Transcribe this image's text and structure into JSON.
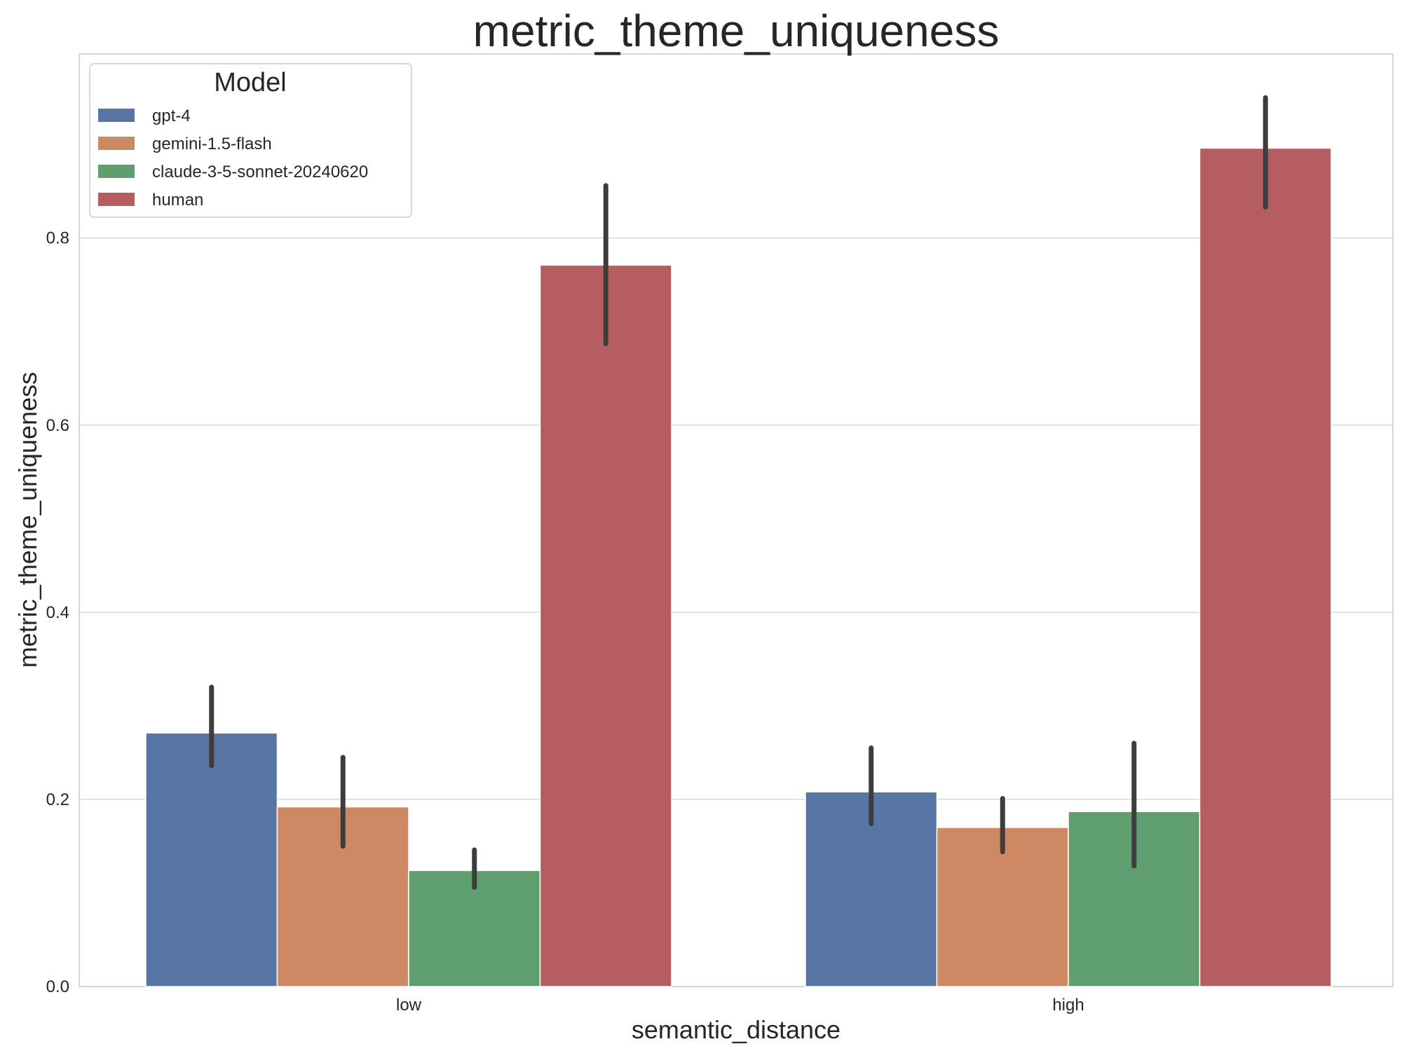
{
  "chart_data": {
    "type": "bar",
    "title": "metric_theme_uniqueness",
    "xlabel": "semantic_distance",
    "ylabel": "metric_theme_uniqueness",
    "categories": [
      "low",
      "high"
    ],
    "ylim": [
      0,
      0.9967
    ],
    "yticks": [
      0.0,
      0.2,
      0.4,
      0.6,
      0.8
    ],
    "ytick_labels": [
      "0.0",
      "0.2",
      "0.4",
      "0.6",
      "0.8"
    ],
    "grid": "horizontal",
    "legend": {
      "title": "Model",
      "position": "top-left"
    },
    "series": [
      {
        "name": "gpt-4",
        "color": "#5875a4",
        "values": [
          0.271,
          0.208
        ],
        "ci_low": [
          0.236,
          0.174
        ],
        "ci_high": [
          0.32,
          0.255
        ]
      },
      {
        "name": "gemini-1.5-flash",
        "color": "#cc8963",
        "values": [
          0.192,
          0.17
        ],
        "ci_low": [
          0.15,
          0.144
        ],
        "ci_high": [
          0.245,
          0.201
        ]
      },
      {
        "name": "claude-3-5-sonnet-20240620",
        "color": "#5f9e6e",
        "values": [
          0.124,
          0.187
        ],
        "ci_low": [
          0.106,
          0.129
        ],
        "ci_high": [
          0.146,
          0.26
        ]
      },
      {
        "name": "human",
        "color": "#b55d60",
        "values": [
          0.771,
          0.896
        ],
        "ci_low": [
          0.687,
          0.833
        ],
        "ci_high": [
          0.856,
          0.95
        ]
      }
    ]
  }
}
